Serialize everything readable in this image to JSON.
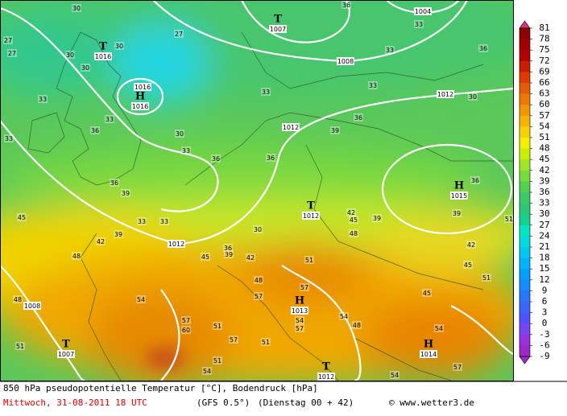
{
  "map": {
    "pressure_systems": [
      {
        "symbol": "T",
        "value": "1016"
      },
      {
        "symbol": "H",
        "value": "1016"
      },
      {
        "symbol": "T",
        "value": "1007"
      },
      {
        "symbol": "T",
        "value": "1012"
      },
      {
        "symbol": "H",
        "value": "1015"
      },
      {
        "symbol": "H",
        "value": "1013"
      },
      {
        "symbol": "T",
        "value": "1007"
      },
      {
        "symbol": "T",
        "value": "1012"
      },
      {
        "symbol": "H",
        "value": "1014"
      }
    ],
    "isobar_labels": [
      "1004",
      "1008",
      "1012",
      "1012",
      "1012",
      "1008",
      "1016"
    ],
    "contour_labels": [
      "30",
      "27",
      "27",
      "30",
      "30",
      "30",
      "27",
      "33",
      "33",
      "36",
      "33",
      "30",
      "33",
      "36",
      "36",
      "36",
      "39",
      "45",
      "33",
      "33",
      "39",
      "42",
      "48",
      "45",
      "36",
      "39",
      "42",
      "30",
      "42",
      "45",
      "39",
      "48",
      "51",
      "48",
      "57",
      "57",
      "48",
      "54",
      "57",
      "60",
      "51",
      "54",
      "57",
      "54",
      "48",
      "45",
      "45",
      "39",
      "42",
      "51",
      "51",
      "36",
      "33",
      "33",
      "36",
      "39",
      "33",
      "30",
      "36",
      "51",
      "57",
      "51",
      "51",
      "54",
      "57",
      "54",
      "54",
      "36",
      "33"
    ]
  },
  "legend": {
    "ticks": [
      81,
      78,
      75,
      72,
      69,
      66,
      63,
      60,
      57,
      54,
      51,
      48,
      45,
      42,
      39,
      36,
      33,
      30,
      27,
      24,
      21,
      18,
      15,
      12,
      9,
      6,
      3,
      0,
      -3,
      -6,
      -9
    ],
    "colors": [
      "#8c0000",
      "#a00000",
      "#b40000",
      "#c81e00",
      "#dc3c00",
      "#e65a00",
      "#eb7800",
      "#f09600",
      "#f5b400",
      "#f5d200",
      "#f0f000",
      "#c8f000",
      "#a0e628",
      "#78dc3c",
      "#50d250",
      "#3cc864",
      "#28c878",
      "#14d28c",
      "#00e6c0",
      "#00dcdc",
      "#00c8f0",
      "#00b4ff",
      "#00a0ff",
      "#148cff",
      "#2878ff",
      "#3c64ff",
      "#5050ff",
      "#7846f0",
      "#9632dc",
      "#a028c8"
    ],
    "top_color": "#e0307a",
    "bottom_color": "#a028c8"
  },
  "footer": {
    "line1": "850 hPa pseudopotentielle Temperatur [°C], Bodendruck [hPa]",
    "date": "Mittwoch, 31-08-2011  18 UTC",
    "model": "(GFS 0.5°)",
    "run": "(Dienstag 00 + 42)",
    "credit": "© www.wetter3.de"
  }
}
